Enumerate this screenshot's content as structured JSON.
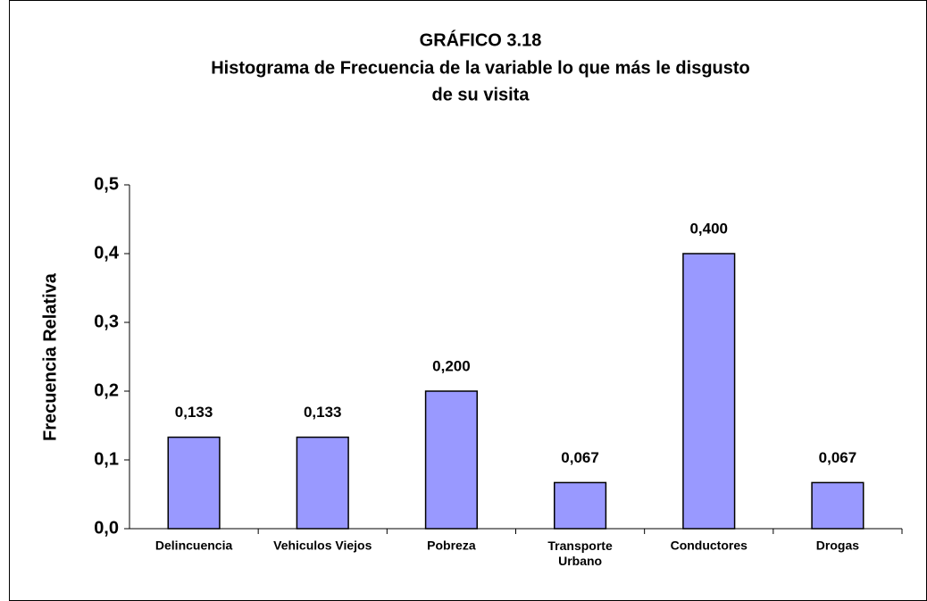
{
  "chart_data": {
    "type": "bar",
    "title": "GRÁFICO 3.18",
    "subtitle": [
      "Histograma de Frecuencia de la variable lo que más le disgusto",
      "de su visita"
    ],
    "y_label": "Frecuencia Relativa",
    "categories": [
      "Delincuencia",
      "Vehiculos Viejos",
      "Pobreza",
      "Transporte Urbano",
      "Conductores",
      "Drogas"
    ],
    "values": [
      0.133,
      0.133,
      0.2,
      0.067,
      0.4,
      0.067
    ],
    "value_labels": [
      "0,133",
      "0,133",
      "0,200",
      "0,067",
      "0,400",
      "0,067"
    ],
    "color": "#9999ff",
    "ylim": [
      0,
      0.5
    ],
    "yticks": [
      {
        "value": 0,
        "label": "0,0"
      },
      {
        "value": 0.1,
        "label": "0,1"
      },
      {
        "value": 0.2,
        "label": "0,2"
      },
      {
        "value": 0.3,
        "label": "0,3"
      },
      {
        "value": 0.4,
        "label": "0,4"
      },
      {
        "value": 0.5,
        "label": "0,5"
      }
    ],
    "grid": false
  }
}
